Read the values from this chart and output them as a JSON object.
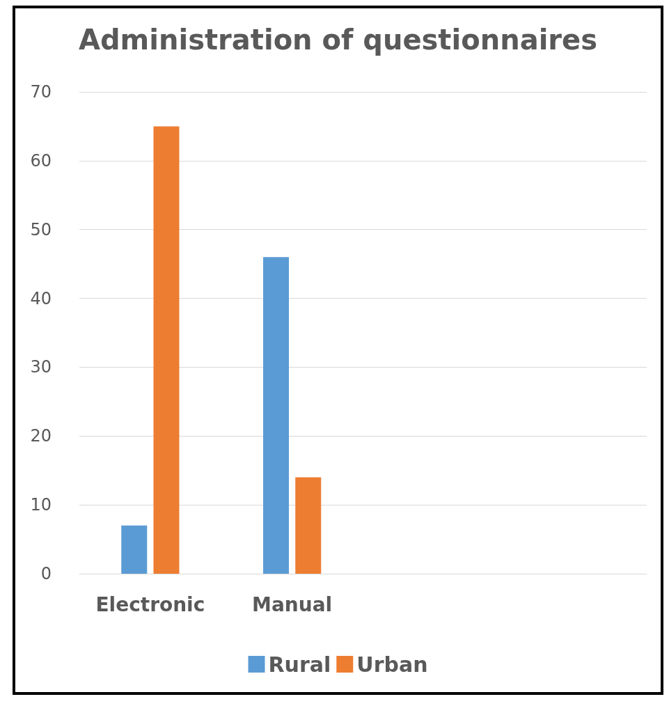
{
  "chart_data": {
    "type": "bar",
    "title": "Administration of questionnaires",
    "categories": [
      "Electronic",
      "Manual",
      null,
      null
    ],
    "series": [
      {
        "name": "Rural",
        "color": "#5b9bd5",
        "values": [
          7,
          46,
          null,
          null
        ]
      },
      {
        "name": "Urban",
        "color": "#ed7d31",
        "values": [
          65,
          14,
          null,
          null
        ]
      }
    ],
    "ylim": [
      0,
      70
    ],
    "yticks": [
      0,
      10,
      20,
      30,
      40,
      50,
      60,
      70
    ],
    "grid": "y",
    "legend": "bottom"
  }
}
